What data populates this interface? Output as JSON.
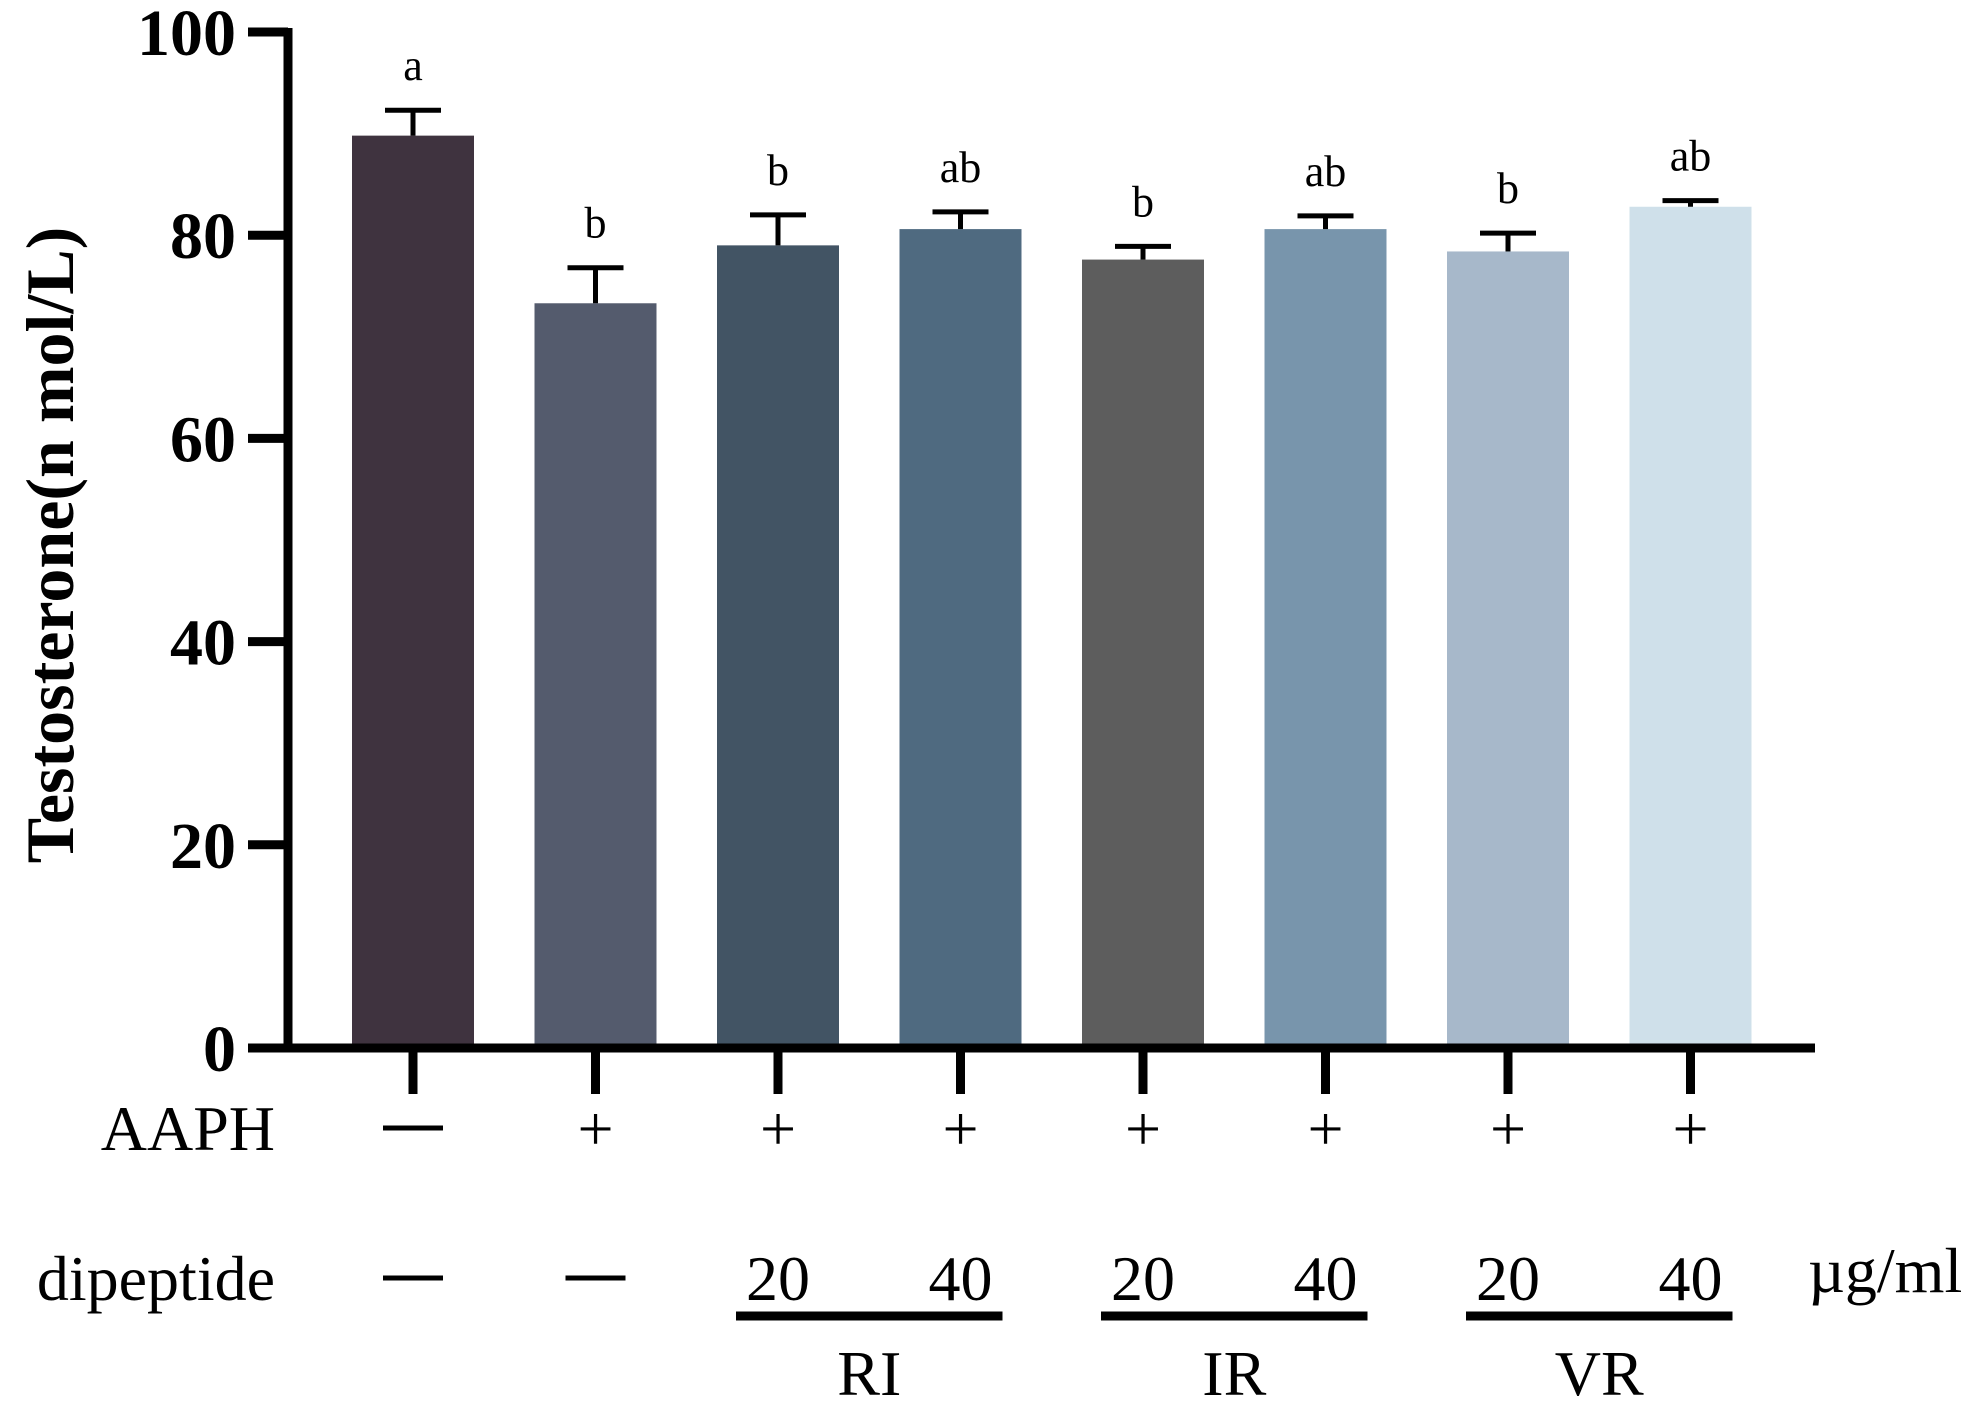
{
  "chart_data": {
    "type": "bar",
    "ylabel": "Testosterone(n mol/L)",
    "ylim": [
      0,
      100
    ],
    "yticks": [
      0,
      20,
      40,
      60,
      80,
      100
    ],
    "grid": false,
    "bars": [
      {
        "value": 89.8,
        "error": 2.5,
        "sig": "a",
        "color": "#3f333f"
      },
      {
        "value": 73.3,
        "error": 3.5,
        "sig": "b",
        "color": "#545b6d"
      },
      {
        "value": 79.0,
        "error": 3.0,
        "sig": "b",
        "color": "#425464"
      },
      {
        "value": 80.6,
        "error": 1.7,
        "sig": "ab",
        "color": "#4f6a80"
      },
      {
        "value": 77.6,
        "error": 1.3,
        "sig": "b",
        "color": "#5d5d5d"
      },
      {
        "value": 80.6,
        "error": 1.3,
        "sig": "ab",
        "color": "#7895ac"
      },
      {
        "value": 78.4,
        "error": 1.8,
        "sig": "b",
        "color": "#a7b8ca"
      },
      {
        "value": 82.8,
        "error": 0.6,
        "sig": "ab",
        "color": "#cfe0ea"
      }
    ],
    "table": {
      "rows": [
        {
          "label": "AAPH",
          "cells": [
            "—",
            "+",
            "+",
            "+",
            "+",
            "+",
            "+",
            "+"
          ]
        },
        {
          "label": "dipeptide",
          "cells": [
            "—",
            "—",
            "20",
            "40",
            "20",
            "40",
            "20",
            "40"
          ],
          "unit": "µg/ml"
        }
      ],
      "groups": [
        {
          "label": "RI",
          "span": [
            2,
            3
          ]
        },
        {
          "label": "IR",
          "span": [
            4,
            5
          ]
        },
        {
          "label": "VR",
          "span": [
            6,
            7
          ]
        }
      ]
    }
  }
}
